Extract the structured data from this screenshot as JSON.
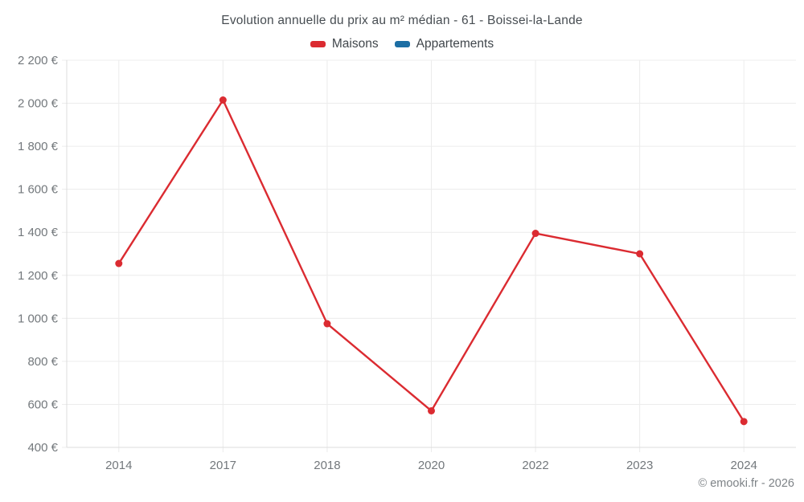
{
  "page": {
    "copyright": "© emooki.fr - 2026"
  },
  "chart_data": {
    "type": "line",
    "title": "Evolution annuelle du prix au m² médian - 61 - Boissei-la-Lande",
    "categories": [
      "2014",
      "2017",
      "2018",
      "2020",
      "2022",
      "2023",
      "2024"
    ],
    "series": [
      {
        "name": "Maisons",
        "color": "#db2b31",
        "values": [
          1255,
          2015,
          975,
          570,
          1395,
          1300,
          520
        ]
      },
      {
        "name": "Appartements",
        "color": "#1c6ea4",
        "values": []
      }
    ],
    "ylim": [
      400,
      2200
    ],
    "yticks": [
      400,
      600,
      800,
      1000,
      1200,
      1400,
      1600,
      1800,
      2000,
      2200
    ],
    "ytick_labels": [
      "400 €",
      "600 €",
      "800 €",
      "1 000 €",
      "1 200 €",
      "1 400 €",
      "1 600 €",
      "1 800 €",
      "2 000 €",
      "2 200 €"
    ],
    "grid": true,
    "legend_position": "top",
    "currency_suffix": " €"
  },
  "colors": {
    "gridline": "#ececec",
    "axis_line": "#dcdcdc",
    "axis_text": "#73787c",
    "title_text": "#474d52"
  }
}
